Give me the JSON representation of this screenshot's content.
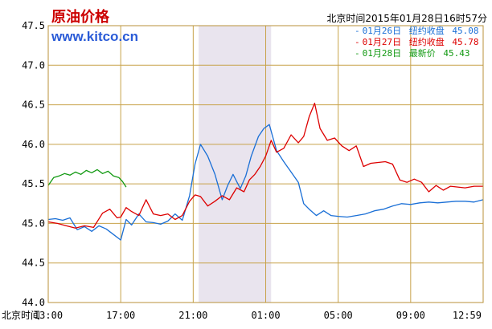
{
  "chart_data": {
    "type": "line",
    "title": "原油价格",
    "watermark": "www.kitco.cn",
    "timestamp": "北京时间2015年01月28日16时57分",
    "xlabel": "北京时间",
    "x_ticks": [
      "13:00",
      "17:00",
      "21:00",
      "01:00",
      "05:00",
      "09:00",
      "12:59"
    ],
    "y_ticks": [
      "44.0",
      "44.5",
      "45.0",
      "45.5",
      "46.0",
      "46.5",
      "47.0",
      "47.5"
    ],
    "ylim": [
      44.0,
      47.5
    ],
    "x_domain": [
      0,
      24
    ],
    "shaded_region": [
      8.3,
      12.3
    ],
    "grid": true,
    "legend_position": "top-right",
    "series": [
      {
        "name": "01月26日",
        "legend_label": "纽约收盘",
        "legend_value": "45.08",
        "color": "#1a6fd6",
        "points": [
          [
            0.0,
            45.05
          ],
          [
            0.4,
            45.06
          ],
          [
            0.8,
            45.04
          ],
          [
            1.2,
            45.07
          ],
          [
            1.6,
            44.92
          ],
          [
            2.0,
            44.96
          ],
          [
            2.4,
            44.9
          ],
          [
            2.8,
            44.97
          ],
          [
            3.2,
            44.93
          ],
          [
            3.6,
            44.86
          ],
          [
            4.0,
            44.79
          ],
          [
            4.3,
            45.05
          ],
          [
            4.6,
            44.98
          ],
          [
            5.0,
            45.12
          ],
          [
            5.4,
            45.02
          ],
          [
            5.8,
            45.01
          ],
          [
            6.2,
            44.99
          ],
          [
            6.6,
            45.03
          ],
          [
            7.0,
            45.12
          ],
          [
            7.4,
            45.04
          ],
          [
            7.8,
            45.35
          ],
          [
            8.1,
            45.75
          ],
          [
            8.4,
            46.0
          ],
          [
            8.8,
            45.85
          ],
          [
            9.2,
            45.62
          ],
          [
            9.6,
            45.3
          ],
          [
            9.9,
            45.48
          ],
          [
            10.2,
            45.62
          ],
          [
            10.6,
            45.44
          ],
          [
            10.9,
            45.6
          ],
          [
            11.2,
            45.85
          ],
          [
            11.6,
            46.1
          ],
          [
            11.9,
            46.2
          ],
          [
            12.2,
            46.25
          ],
          [
            12.6,
            45.92
          ],
          [
            13.0,
            45.78
          ],
          [
            13.4,
            45.65
          ],
          [
            13.8,
            45.52
          ],
          [
            14.1,
            45.25
          ],
          [
            14.4,
            45.18
          ],
          [
            14.8,
            45.1
          ],
          [
            15.2,
            45.16
          ],
          [
            15.6,
            45.1
          ],
          [
            16.0,
            45.09
          ],
          [
            16.5,
            45.08
          ],
          [
            17.0,
            45.1
          ],
          [
            17.5,
            45.12
          ],
          [
            18.0,
            45.16
          ],
          [
            18.5,
            45.18
          ],
          [
            19.0,
            45.22
          ],
          [
            19.5,
            45.25
          ],
          [
            20.0,
            45.24
          ],
          [
            20.5,
            45.26
          ],
          [
            21.0,
            45.27
          ],
          [
            21.5,
            45.26
          ],
          [
            22.0,
            45.27
          ],
          [
            22.5,
            45.28
          ],
          [
            23.0,
            45.28
          ],
          [
            23.5,
            45.27
          ],
          [
            24.0,
            45.3
          ]
        ]
      },
      {
        "name": "01月27日",
        "legend_label": "纽约收盘",
        "legend_value": "45.78",
        "color": "#dd0000",
        "points": [
          [
            0.0,
            45.02
          ],
          [
            0.5,
            45.0
          ],
          [
            1.0,
            44.97
          ],
          [
            1.5,
            44.94
          ],
          [
            2.0,
            44.97
          ],
          [
            2.5,
            44.95
          ],
          [
            3.0,
            45.13
          ],
          [
            3.4,
            45.18
          ],
          [
            3.8,
            45.07
          ],
          [
            4.0,
            45.08
          ],
          [
            4.3,
            45.2
          ],
          [
            4.6,
            45.15
          ],
          [
            5.0,
            45.1
          ],
          [
            5.4,
            45.3
          ],
          [
            5.8,
            45.12
          ],
          [
            6.2,
            45.1
          ],
          [
            6.6,
            45.12
          ],
          [
            7.0,
            45.05
          ],
          [
            7.4,
            45.1
          ],
          [
            7.8,
            45.28
          ],
          [
            8.1,
            45.36
          ],
          [
            8.4,
            45.34
          ],
          [
            8.8,
            45.22
          ],
          [
            9.2,
            45.28
          ],
          [
            9.6,
            45.35
          ],
          [
            10.0,
            45.3
          ],
          [
            10.4,
            45.45
          ],
          [
            10.8,
            45.4
          ],
          [
            11.1,
            45.55
          ],
          [
            11.4,
            45.62
          ],
          [
            11.7,
            45.72
          ],
          [
            12.0,
            45.85
          ],
          [
            12.3,
            46.05
          ],
          [
            12.6,
            45.9
          ],
          [
            13.0,
            45.95
          ],
          [
            13.4,
            46.12
          ],
          [
            13.8,
            46.02
          ],
          [
            14.1,
            46.1
          ],
          [
            14.4,
            46.35
          ],
          [
            14.7,
            46.52
          ],
          [
            15.0,
            46.2
          ],
          [
            15.4,
            46.05
          ],
          [
            15.8,
            46.08
          ],
          [
            16.2,
            45.98
          ],
          [
            16.6,
            45.92
          ],
          [
            17.0,
            45.98
          ],
          [
            17.4,
            45.72
          ],
          [
            17.8,
            45.76
          ],
          [
            18.2,
            45.77
          ],
          [
            18.6,
            45.78
          ],
          [
            19.0,
            45.75
          ],
          [
            19.4,
            45.55
          ],
          [
            19.8,
            45.52
          ],
          [
            20.2,
            45.56
          ],
          [
            20.6,
            45.52
          ],
          [
            21.0,
            45.4
          ],
          [
            21.4,
            45.48
          ],
          [
            21.8,
            45.42
          ],
          [
            22.2,
            45.47
          ],
          [
            22.6,
            45.46
          ],
          [
            23.0,
            45.45
          ],
          [
            23.5,
            45.47
          ],
          [
            24.0,
            45.47
          ]
        ]
      },
      {
        "name": "01月28日",
        "legend_label": "最新价",
        "legend_value": "45.43",
        "color": "#119911",
        "points": [
          [
            0.0,
            45.48
          ],
          [
            0.3,
            45.58
          ],
          [
            0.6,
            45.6
          ],
          [
            0.9,
            45.63
          ],
          [
            1.2,
            45.61
          ],
          [
            1.5,
            45.65
          ],
          [
            1.8,
            45.62
          ],
          [
            2.1,
            45.67
          ],
          [
            2.4,
            45.64
          ],
          [
            2.7,
            45.68
          ],
          [
            3.0,
            45.63
          ],
          [
            3.3,
            45.66
          ],
          [
            3.6,
            45.6
          ],
          [
            3.9,
            45.58
          ],
          [
            4.1,
            45.53
          ],
          [
            4.3,
            45.46
          ]
        ]
      }
    ]
  }
}
